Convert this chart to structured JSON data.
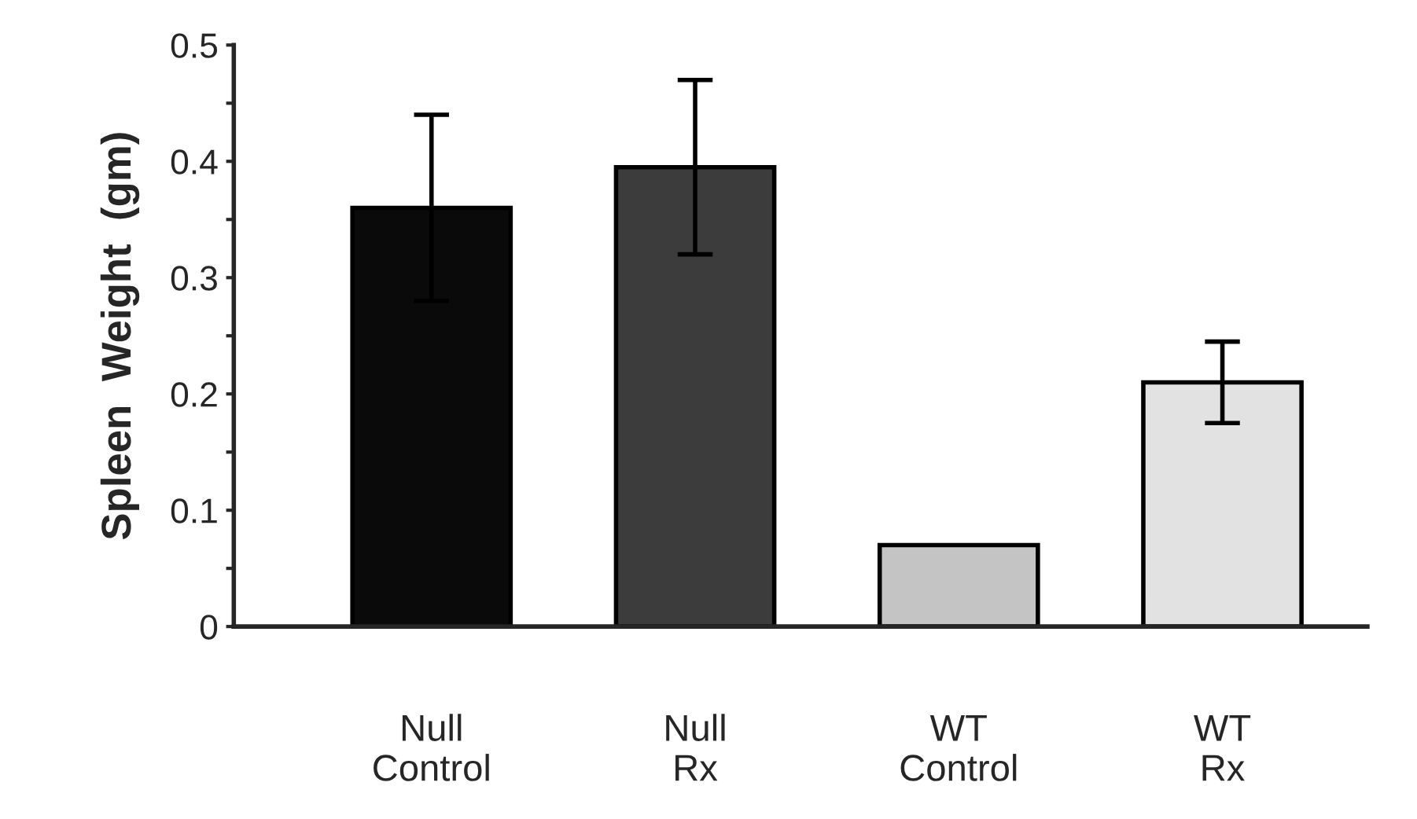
{
  "chart_data": {
    "type": "bar",
    "ylabel": "Spleen  Weight  (gm)",
    "categories": [
      "Null\nControl",
      "Null\nRx",
      "WT\nControl",
      "WT\nRx"
    ],
    "values": [
      0.36,
      0.395,
      0.07,
      0.21
    ],
    "errors": [
      0.08,
      0.075,
      null,
      0.035
    ],
    "colors": [
      "#0a0a0a",
      "#3c3c3c",
      "#c4c4c4",
      "#e2e2e2"
    ],
    "ylim": [
      0,
      0.5
    ],
    "yticks": [
      0,
      {
        "value": 0.05,
        "label": null
      },
      0.1,
      {
        "value": 0.15,
        "label": null
      },
      0.2,
      {
        "value": 0.25,
        "label": null
      },
      0.3,
      {
        "value": 0.35,
        "label": null
      },
      0.4,
      {
        "value": 0.45,
        "label": null
      },
      0.5
    ],
    "grid": false,
    "legend": false
  }
}
